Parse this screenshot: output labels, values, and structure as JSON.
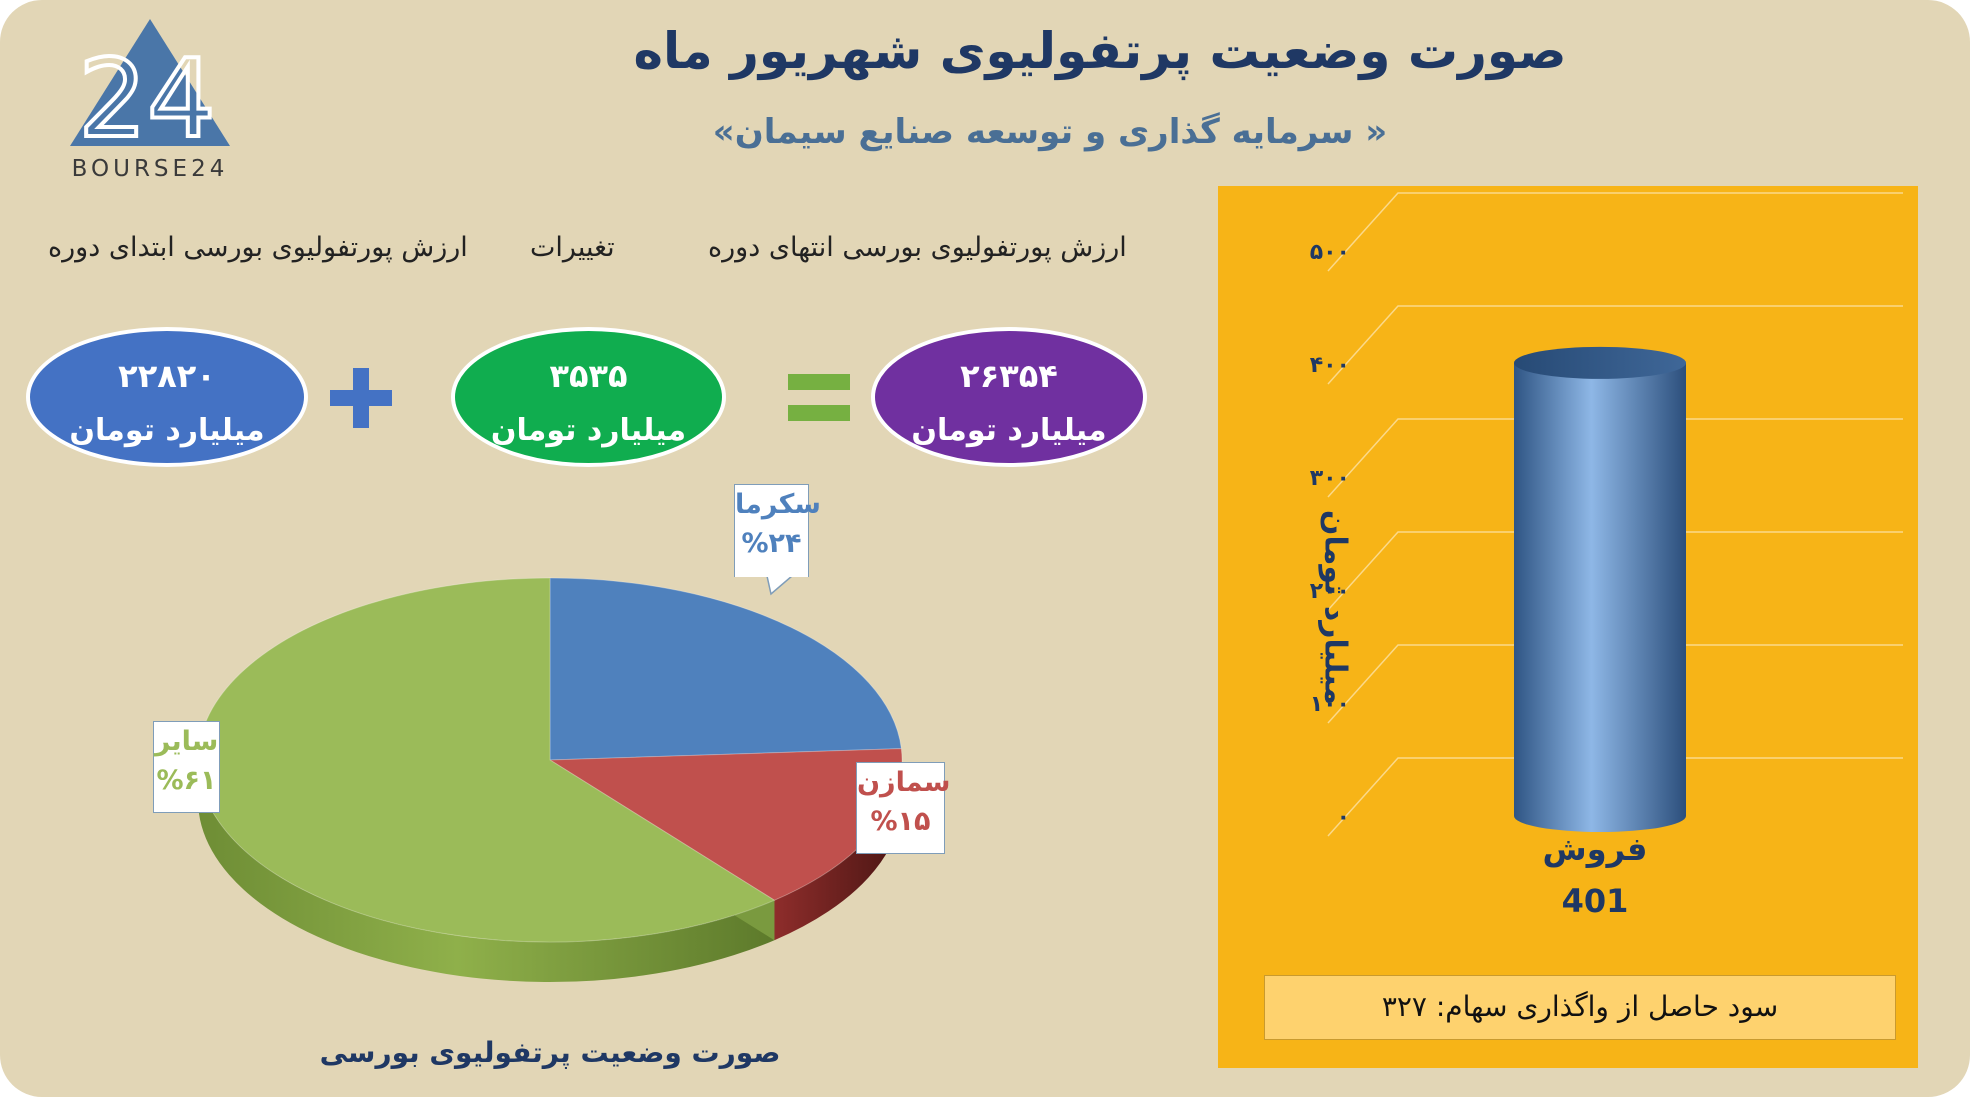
{
  "header": {
    "title": "صورت وضعیت پرتفولیوی شهریور ماه",
    "subtitle": "«سرمایه گذاری و توسعه صنایع سیمان »",
    "logo_text": "BOURSE24"
  },
  "summary": {
    "start_label": "ارزش پورتفولیوی بورسی ابتدای دوره",
    "change_label": "تغییرات",
    "end_label": "ارزش پورتفولیوی بورسی انتهای دوره",
    "start_value": "۲۲۸۲۰",
    "change_value": "۳۵۳۵",
    "end_value": "۲۶۳۵۴",
    "unit": "میلیارد تومان",
    "colors": {
      "start": "#4472c4",
      "change": "#10ad4f",
      "end": "#7030a0",
      "operators": "#4472c4"
    }
  },
  "chart_data": [
    {
      "type": "pie",
      "title": "صورت وضعیت پرتفولیوی بورسی",
      "slices": [
        {
          "name": "سکرما",
          "value": 24,
          "label": "%۲۴",
          "color": "#4f81bd"
        },
        {
          "name": "سمازن",
          "value": 15,
          "label": "%۱۵",
          "color": "#c0504d"
        },
        {
          "name": "سایر",
          "value": 61,
          "label": "%۶۱",
          "color": "#9bbb59"
        }
      ]
    },
    {
      "type": "bar",
      "categories": [
        "فروش"
      ],
      "values": [
        401
      ],
      "value_label": "401",
      "ylabel": "میلیارد تومان",
      "ylim": [
        0,
        500
      ],
      "yticks": [
        "۰",
        "۱۰۰",
        "۲۰۰",
        "۳۰۰",
        "۴۰۰",
        "۵۰۰"
      ],
      "grid": true,
      "color": "#5b8ac6",
      "background": "#f7b417"
    }
  ],
  "footer": {
    "profit_text": "سود حاصل از واگذاری سهام: ۳۲۷"
  }
}
